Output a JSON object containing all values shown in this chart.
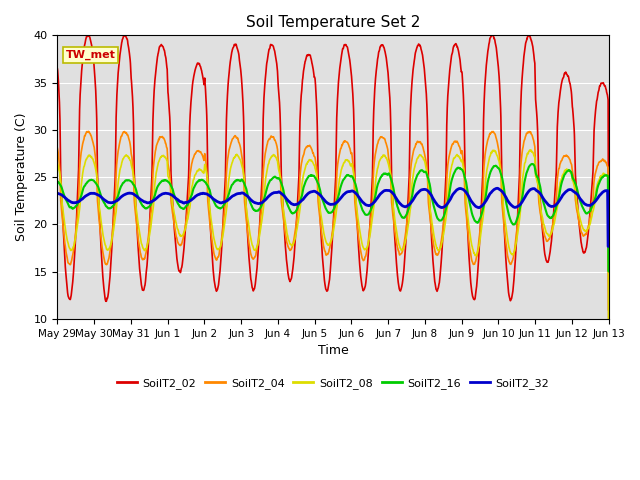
{
  "title": "Soil Temperature Set 2",
  "xlabel": "Time",
  "ylabel": "Soil Temperature (C)",
  "ylim": [
    10,
    40
  ],
  "background_color": "#e0e0e0",
  "fig_background": "#ffffff",
  "grid_color": "#ffffff",
  "annotation_text": "TW_met",
  "annotation_bg": "#ffffcc",
  "annotation_edge": "#bbbb00",
  "annotation_text_color": "#cc0000",
  "legend_labels": [
    "SoilT2_02",
    "SoilT2_04",
    "SoilT2_08",
    "SoilT2_16",
    "SoilT2_32"
  ],
  "line_colors": [
    "#dd0000",
    "#ff8800",
    "#dddd00",
    "#00cc00",
    "#0000cc"
  ],
  "line_widths": [
    1.2,
    1.2,
    1.2,
    1.5,
    2.0
  ],
  "xtick_labels": [
    "May 29",
    "May 30",
    "May 31",
    "Jun 1",
    "Jun 2",
    "Jun 3",
    "Jun 4",
    "Jun 5",
    "Jun 6",
    "Jun 7",
    "Jun 8",
    "Jun 9",
    "Jun 10",
    "Jun 11",
    "Jun 12",
    "Jun 13"
  ],
  "n_days": 15,
  "yticks": [
    10,
    15,
    20,
    25,
    30,
    35,
    40
  ]
}
